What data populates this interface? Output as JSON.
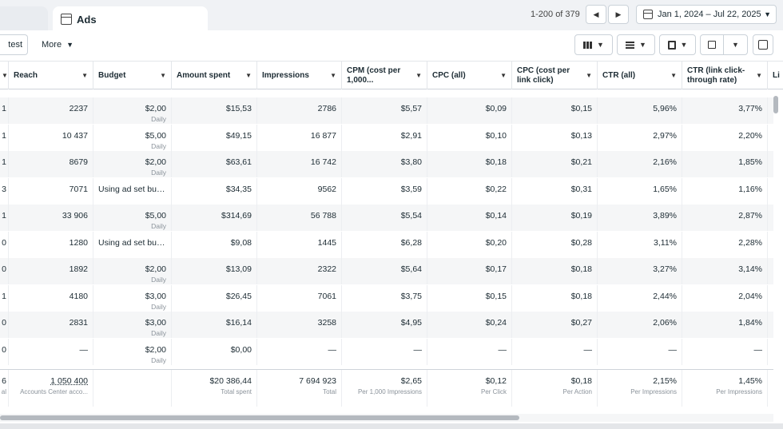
{
  "tabs": {
    "ads_label": "Ads"
  },
  "pager": {
    "range": "1-200 of 379"
  },
  "date_range": {
    "label": "Jan 1, 2024 – Jul 22, 2025"
  },
  "toolbar": {
    "ab_test": "test",
    "more": "More"
  },
  "columns": [
    "Reach",
    "Budget",
    "Amount spent",
    "Impressions",
    "CPM (cost per 1,000...",
    "CPC (all)",
    "CPC (cost per link click)",
    "CTR (all)",
    "CTR (link click-through rate)",
    "Li"
  ],
  "rows": [
    {
      "edge": "1",
      "reach": "2237",
      "budget": "$2,00",
      "budget_sub": "Daily",
      "spent": "$15,53",
      "impr": "2786",
      "cpm": "$5,57",
      "cpc_all": "$0,09",
      "cpc_link": "$0,15",
      "ctr_all": "5,96%",
      "ctr_link": "3,77%"
    },
    {
      "edge": "1",
      "reach": "10 437",
      "budget": "$5,00",
      "budget_sub": "Daily",
      "spent": "$49,15",
      "impr": "16 877",
      "cpm": "$2,91",
      "cpc_all": "$0,10",
      "cpc_link": "$0,13",
      "ctr_all": "2,97%",
      "ctr_link": "2,20%"
    },
    {
      "edge": "1",
      "reach": "8679",
      "budget": "$2,00",
      "budget_sub": "Daily",
      "spent": "$63,61",
      "impr": "16 742",
      "cpm": "$3,80",
      "cpc_all": "$0,18",
      "cpc_link": "$0,21",
      "ctr_all": "2,16%",
      "ctr_link": "1,85%"
    },
    {
      "edge": "3",
      "reach": "7071",
      "budget": "Using ad set bu…",
      "budget_sub": "",
      "spent": "$34,35",
      "impr": "9562",
      "cpm": "$3,59",
      "cpc_all": "$0,22",
      "cpc_link": "$0,31",
      "ctr_all": "1,65%",
      "ctr_link": "1,16%"
    },
    {
      "edge": "1",
      "reach": "33 906",
      "budget": "$5,00",
      "budget_sub": "Daily",
      "spent": "$314,69",
      "impr": "56 788",
      "cpm": "$5,54",
      "cpc_all": "$0,14",
      "cpc_link": "$0,19",
      "ctr_all": "3,89%",
      "ctr_link": "2,87%"
    },
    {
      "edge": "0",
      "reach": "1280",
      "budget": "Using ad set bu…",
      "budget_sub": "",
      "spent": "$9,08",
      "impr": "1445",
      "cpm": "$6,28",
      "cpc_all": "$0,20",
      "cpc_link": "$0,28",
      "ctr_all": "3,11%",
      "ctr_link": "2,28%"
    },
    {
      "edge": "0",
      "reach": "1892",
      "budget": "$2,00",
      "budget_sub": "Daily",
      "spent": "$13,09",
      "impr": "2322",
      "cpm": "$5,64",
      "cpc_all": "$0,17",
      "cpc_link": "$0,18",
      "ctr_all": "3,27%",
      "ctr_link": "3,14%"
    },
    {
      "edge": "1",
      "reach": "4180",
      "budget": "$3,00",
      "budget_sub": "Daily",
      "spent": "$26,45",
      "impr": "7061",
      "cpm": "$3,75",
      "cpc_all": "$0,15",
      "cpc_link": "$0,18",
      "ctr_all": "2,44%",
      "ctr_link": "2,04%"
    },
    {
      "edge": "0",
      "reach": "2831",
      "budget": "$3,00",
      "budget_sub": "Daily",
      "spent": "$16,14",
      "impr": "3258",
      "cpm": "$4,95",
      "cpc_all": "$0,24",
      "cpc_link": "$0,27",
      "ctr_all": "2,06%",
      "ctr_link": "1,84%"
    },
    {
      "edge": "0",
      "reach": "—",
      "budget": "$2,00",
      "budget_sub": "Daily",
      "spent": "$0,00",
      "impr": "—",
      "cpm": "—",
      "cpc_all": "—",
      "cpc_link": "—",
      "ctr_all": "—",
      "ctr_link": "—"
    }
  ],
  "totals": {
    "edge": "6",
    "edge_sub": "al",
    "reach": "1 050 400",
    "reach_sub": "Accounts Center acco...",
    "spent": "$20 386,44",
    "spent_sub": "Total spent",
    "impr": "7 694 923",
    "impr_sub": "Total",
    "cpm": "$2,65",
    "cpm_sub": "Per 1,000 Impressions",
    "cpc_all": "$0,12",
    "cpc_all_sub": "Per Click",
    "cpc_link": "$0,18",
    "cpc_link_sub": "Per Action",
    "ctr_all": "2,15%",
    "ctr_all_sub": "Per Impressions",
    "ctr_link": "1,45%",
    "ctr_link_sub": "Per Impressions"
  }
}
